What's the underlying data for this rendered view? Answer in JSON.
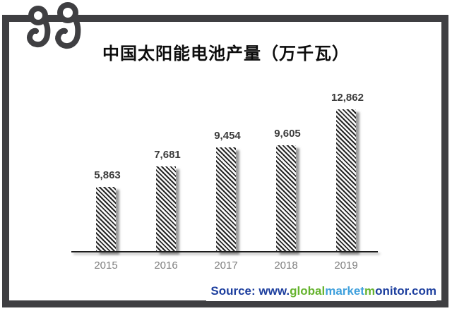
{
  "frame": {
    "color": "#3f3f42"
  },
  "logo": {
    "name": "double-curl-ribbon-logo",
    "color": "#3f3f42"
  },
  "chart_data": {
    "type": "bar",
    "title": "中国太阳能电池产量（万千瓦）",
    "categories": [
      "2015",
      "2016",
      "2017",
      "2018",
      "2019"
    ],
    "values": [
      5863,
      7681,
      9454,
      9605,
      12862
    ],
    "value_labels": [
      "5,863",
      "7,681",
      "9,454",
      "9,605",
      "12,862"
    ],
    "xlabel": "",
    "ylabel": "",
    "ylim": [
      0,
      13000
    ],
    "grid": false,
    "legend": "none",
    "bar_fill": "diagonal-hatch",
    "bar_color": "#262626",
    "value_label_color": "#3c3c3c",
    "tick_label_color": "#7f7f7f",
    "axis_color": "#1c1c1c"
  },
  "source": {
    "segments": [
      {
        "text": "Source: www.",
        "color": "#1c3e9e"
      },
      {
        "text": "global",
        "color": "#65b32e"
      },
      {
        "text": "market",
        "color": "#3fa0dc"
      },
      {
        "text": "m",
        "color": "#65b32e"
      },
      {
        "text": "onitor",
        "color": "#1c3e9e"
      },
      {
        "text": ".com",
        "color": "#1c3e9e"
      }
    ]
  }
}
